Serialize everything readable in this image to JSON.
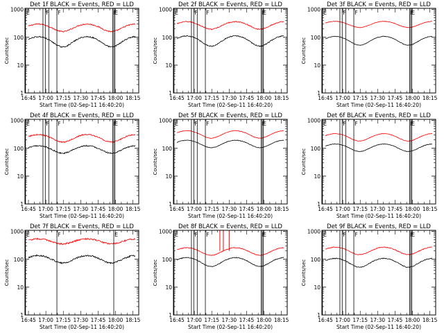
{
  "figure": {
    "x_tick_labels": [
      "16:45",
      "17:00",
      "17:15",
      "17:30",
      "17:45",
      "18:00",
      "18:15"
    ],
    "x_tick_values_min": [
      0,
      15,
      30,
      45,
      60,
      75,
      90
    ],
    "xlim_min": [
      -3,
      95
    ],
    "y_tick_labels": [
      "1",
      "10",
      "100",
      "1000"
    ],
    "y_tick_values": [
      1,
      10,
      100,
      1000
    ],
    "ylim": [
      1,
      1100
    ],
    "y_scale": "log",
    "x_axis_start": "16:45",
    "colors": {
      "events": "#000000",
      "lld": "#ff0000",
      "axes": "#000000",
      "background": "#ffffff"
    }
  },
  "chart_data": [
    {
      "type": "line",
      "detector": "1f",
      "title": "Det 1f BLACK = Events, RED = LLD",
      "xlabel": "Start Time (02-Sep-11 16:40:20)",
      "ylabel": "Counts/sec",
      "events_base": 75,
      "events_amp": 0.4,
      "lld_base": 230,
      "lld_amp": 0.3,
      "phase": 0.3,
      "noise": 0.05,
      "markers": [
        {
          "label": "E",
          "t": -2.5
        },
        {
          "label": "",
          "t": 12.5
        },
        {
          "label": "F",
          "t": 14.5
        },
        {
          "label": "",
          "t": 17.5
        },
        {
          "label": "F",
          "t": 24.5
        },
        {
          "label": "F",
          "t": 72.5
        },
        {
          "label": "E",
          "t": 73.5
        },
        {
          "label": "",
          "t": 74.5
        }
      ]
    },
    {
      "type": "line",
      "detector": "2f",
      "title": "Det 2f BLACK = Events, RED = LLD",
      "xlabel": "Start Time (02-Sep-11 16:40:20)",
      "ylabel": "Counts/sec",
      "events_base": 80,
      "events_amp": 0.4,
      "lld_base": 280,
      "lld_amp": 0.3,
      "phase": 0.3,
      "noise": 0.04,
      "markers": [
        {
          "label": "E",
          "t": -2.5
        },
        {
          "label": "",
          "t": 12.5
        },
        {
          "label": "F",
          "t": 14.5
        },
        {
          "label": "",
          "t": 17.5
        },
        {
          "label": "F",
          "t": 24.5
        },
        {
          "label": "F",
          "t": 72.5
        },
        {
          "label": "E",
          "t": 73.5
        },
        {
          "label": "",
          "t": 74.5
        }
      ]
    },
    {
      "type": "line",
      "detector": "3f",
      "title": "Det 3f BLACK = Events, RED = LLD",
      "xlabel": "Start Time (02-Sep-11 16:40:20)",
      "ylabel": "Counts/sec",
      "events_base": 80,
      "events_amp": 0.35,
      "lld_base": 300,
      "lld_amp": 0.25,
      "phase": 0.3,
      "noise": 0.02,
      "markers": [
        {
          "label": "E",
          "t": -2.5
        },
        {
          "label": "",
          "t": 12.5
        },
        {
          "label": "F",
          "t": 14.5
        },
        {
          "label": "",
          "t": 17.5
        },
        {
          "label": "F",
          "t": 24.5
        },
        {
          "label": "F",
          "t": 72.5
        },
        {
          "label": "E",
          "t": 73.5
        },
        {
          "label": "",
          "t": 74.5
        }
      ]
    },
    {
      "type": "line",
      "detector": "4f",
      "title": "Det 4f BLACK = Events, RED = LLD",
      "xlabel": "Start Time (02-Sep-11 16:40:20)",
      "ylabel": "Counts/sec",
      "events_base": 95,
      "events_amp": 0.3,
      "lld_base": 240,
      "lld_amp": 0.3,
      "phase": 0.3,
      "noise": 0.05,
      "markers": [
        {
          "label": "E",
          "t": -2.5
        },
        {
          "label": "",
          "t": 12.5
        },
        {
          "label": "F",
          "t": 14.5
        },
        {
          "label": "",
          "t": 17.5
        },
        {
          "label": "F",
          "t": 24.5
        },
        {
          "label": "F",
          "t": 72.5
        },
        {
          "label": "E",
          "t": 73.5
        },
        {
          "label": "",
          "t": 74.5
        }
      ]
    },
    {
      "type": "line",
      "detector": "5f",
      "title": "Det 5f BLACK = Events, RED = LLD",
      "xlabel": "Start Time (02-Sep-11 16:40:20)",
      "ylabel": "Counts/sec",
      "events_base": 150,
      "events_amp": 0.3,
      "lld_base": 330,
      "lld_amp": 0.3,
      "phase": 0.3,
      "noise": 0.02,
      "markers": [
        {
          "label": "E",
          "t": -2.5
        },
        {
          "label": "",
          "t": 12.5
        },
        {
          "label": "F",
          "t": 14.5
        },
        {
          "label": "",
          "t": 17.5
        },
        {
          "label": "F",
          "t": 24.5
        },
        {
          "label": "F",
          "t": 72.5
        },
        {
          "label": "E",
          "t": 73.5
        },
        {
          "label": "",
          "t": 74.5
        }
      ]
    },
    {
      "type": "line",
      "detector": "6f",
      "title": "Det 6f BLACK = Events, RED = LLD",
      "xlabel": "Start Time (02-Sep-11 16:40:20)",
      "ylabel": "Counts/sec",
      "events_base": 110,
      "events_amp": 0.3,
      "lld_base": 260,
      "lld_amp": 0.3,
      "phase": 0.3,
      "noise": 0.02,
      "markers": [
        {
          "label": "E",
          "t": -2.5
        },
        {
          "label": "",
          "t": 12.5
        },
        {
          "label": "F",
          "t": 14.5
        },
        {
          "label": "",
          "t": 17.5
        },
        {
          "label": "F",
          "t": 24.5
        },
        {
          "label": "F",
          "t": 72.5
        },
        {
          "label": "E",
          "t": 73.5
        },
        {
          "label": "",
          "t": 74.5
        }
      ]
    },
    {
      "type": "line",
      "detector": "7f",
      "title": "Det 7f BLACK = Events, RED = LLD",
      "xlabel": "Start Time (02-Sep-11 16:40:20)",
      "ylabel": "Counts/sec",
      "events_base": 105,
      "events_amp": 0.3,
      "lld_base": 450,
      "lld_amp": 0.2,
      "phase": 0.3,
      "noise": 0.06,
      "markers": [
        {
          "label": "E",
          "t": -2.5
        },
        {
          "label": "F",
          "t": 24.5
        },
        {
          "label": "E",
          "t": 73.5
        }
      ]
    },
    {
      "type": "line",
      "detector": "8f",
      "title": "Det 8f BLACK = Events, RED = LLD",
      "xlabel": "Start Time (02-Sep-11 16:40:20)",
      "ylabel": "Counts/sec",
      "events_base": 85,
      "events_amp": 0.35,
      "lld_base": 200,
      "lld_amp": 0.3,
      "phase": 0.3,
      "noise": 0.03,
      "spikes": [
        {
          "t": 37,
          "value": 1100
        },
        {
          "t": 40,
          "value": 1100
        },
        {
          "t": 45,
          "value": 1100
        }
      ],
      "markers": [
        {
          "label": "E",
          "t": -2.5
        },
        {
          "label": "",
          "t": 12.5
        },
        {
          "label": "F",
          "t": 14.5
        },
        {
          "label": "",
          "t": 17.5
        },
        {
          "label": "F",
          "t": 24.5
        },
        {
          "label": "F",
          "t": 72.5
        },
        {
          "label": "E",
          "t": 73.5
        },
        {
          "label": "",
          "t": 74.5
        }
      ]
    },
    {
      "type": "line",
      "detector": "9f",
      "title": "Det 9f BLACK = Events, RED = LLD",
      "xlabel": "Start Time (02-Sep-11 16:40:20)",
      "ylabel": "Counts/sec",
      "events_base": 80,
      "events_amp": 0.35,
      "lld_base": 210,
      "lld_amp": 0.3,
      "phase": 0.3,
      "noise": 0.03,
      "markers": [
        {
          "label": "E",
          "t": -2.5
        },
        {
          "label": "",
          "t": 12.5
        },
        {
          "label": "F",
          "t": 14.5
        },
        {
          "label": "",
          "t": 17.5
        },
        {
          "label": "F",
          "t": 24.5
        },
        {
          "label": "F",
          "t": 72.5
        },
        {
          "label": "E",
          "t": 73.5
        },
        {
          "label": "",
          "t": 74.5
        }
      ]
    }
  ]
}
